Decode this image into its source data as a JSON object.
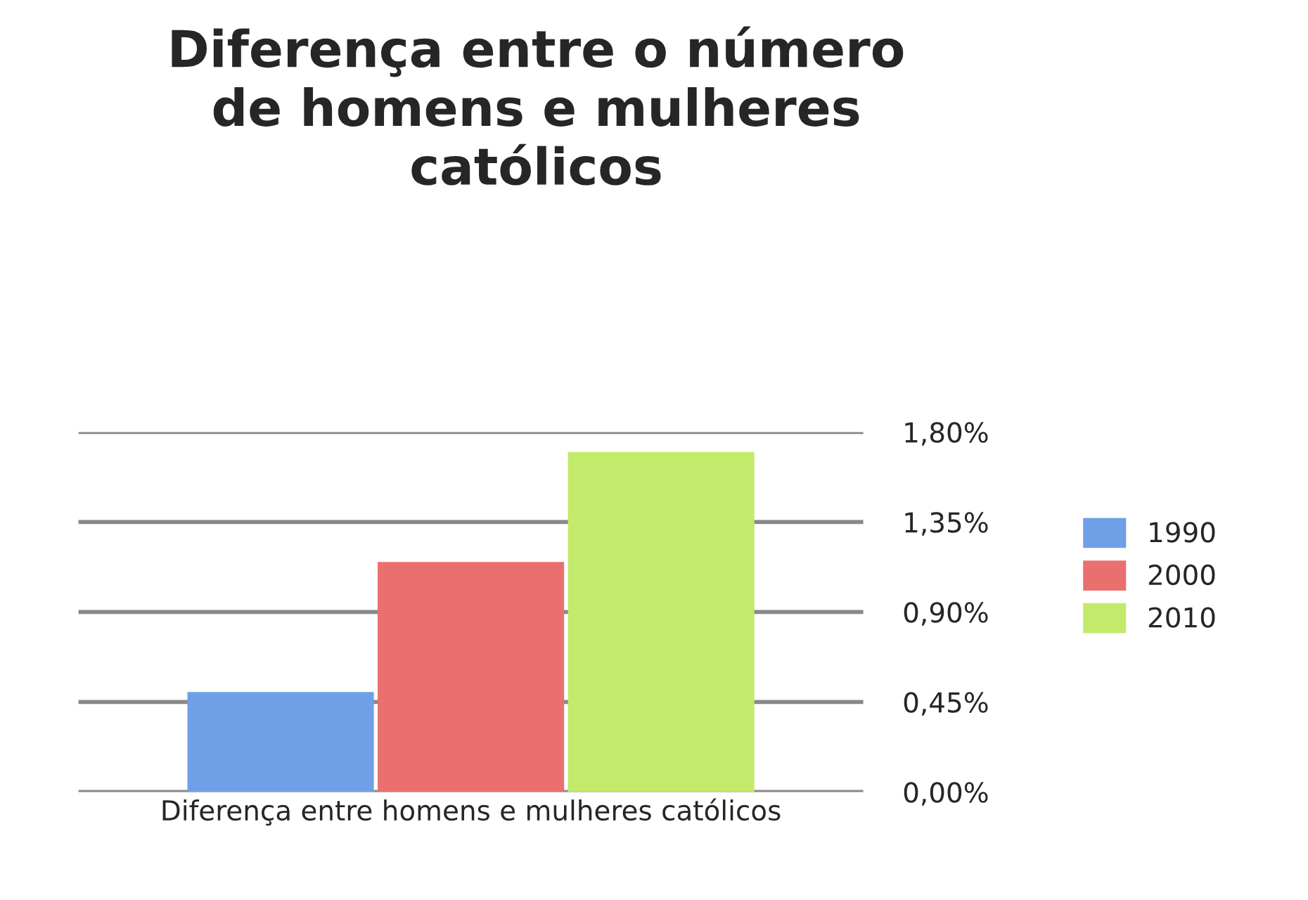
{
  "chart_data": {
    "type": "bar",
    "title": "Diferença entre o número\nde homens e mulheres\ncatólicos",
    "categories": [
      "Diferença entre homens e mulheres católicos"
    ],
    "series": [
      {
        "name": "1990",
        "color": "#6f9fe6",
        "values": [
          0.5
        ]
      },
      {
        "name": "2000",
        "color": "#ea7070",
        "values": [
          1.15
        ]
      },
      {
        "name": "2010",
        "color": "#c3ea6a",
        "values": [
          1.7
        ]
      }
    ],
    "ylim": [
      0,
      1.8
    ],
    "yticks": [
      {
        "value": 0,
        "label": "0,00%"
      },
      {
        "value": 0.45,
        "label": "0,45%"
      },
      {
        "value": 0.9,
        "label": "0,90%"
      },
      {
        "value": 1.35,
        "label": "1,35%"
      },
      {
        "value": 1.8,
        "label": "1,80%"
      }
    ],
    "grid": "y",
    "legend": "right"
  }
}
